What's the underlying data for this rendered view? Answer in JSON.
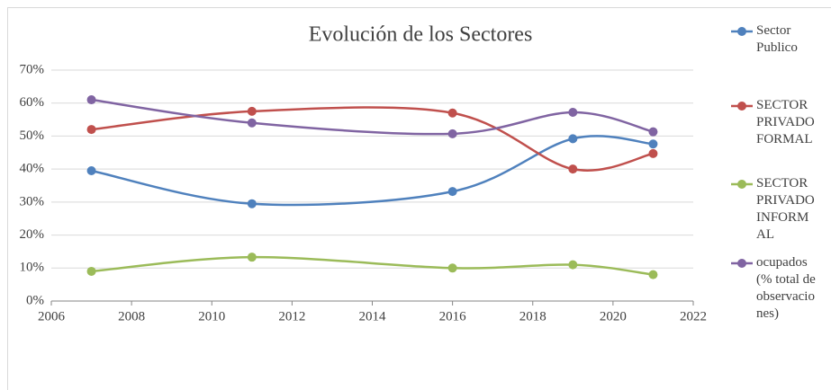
{
  "chart_data": {
    "type": "line",
    "title": "Evolución de los Sectores",
    "x": [
      2007,
      2011,
      2016,
      2019,
      2021
    ],
    "series": [
      {
        "name": "Sector Publico",
        "color": "#4f81bd",
        "values": [
          39.5,
          29.5,
          33.2,
          49.2,
          47.6
        ]
      },
      {
        "name": "SECTOR PRIVADO FORMAL",
        "color": "#c0504d",
        "values": [
          52,
          57.5,
          57,
          40,
          44.7
        ]
      },
      {
        "name": "SECTOR PRIVADO INFORMAL",
        "color": "#9bbb59",
        "values": [
          9,
          13.3,
          10,
          11,
          8
        ]
      },
      {
        "name": "ocupados (% total de observaciones)",
        "color": "#8064a2",
        "values": [
          61,
          54,
          50.7,
          57.2,
          51.3
        ]
      }
    ],
    "xlim": [
      2006,
      2022
    ],
    "xticks": [
      2006,
      2008,
      2010,
      2012,
      2014,
      2016,
      2018,
      2020,
      2022
    ],
    "ylim": [
      0,
      70
    ],
    "yticks": [
      {
        "value": 0,
        "label": "0%"
      },
      {
        "value": 10,
        "label": "10%"
      },
      {
        "value": 20,
        "label": "20%"
      },
      {
        "value": 30,
        "label": "30%"
      },
      {
        "value": 40,
        "label": "40%"
      },
      {
        "value": 50,
        "label": "50%"
      },
      {
        "value": 60,
        "label": "60%"
      },
      {
        "value": 70,
        "label": "70%"
      }
    ],
    "grid": true,
    "smooth": true,
    "legend": "right"
  }
}
